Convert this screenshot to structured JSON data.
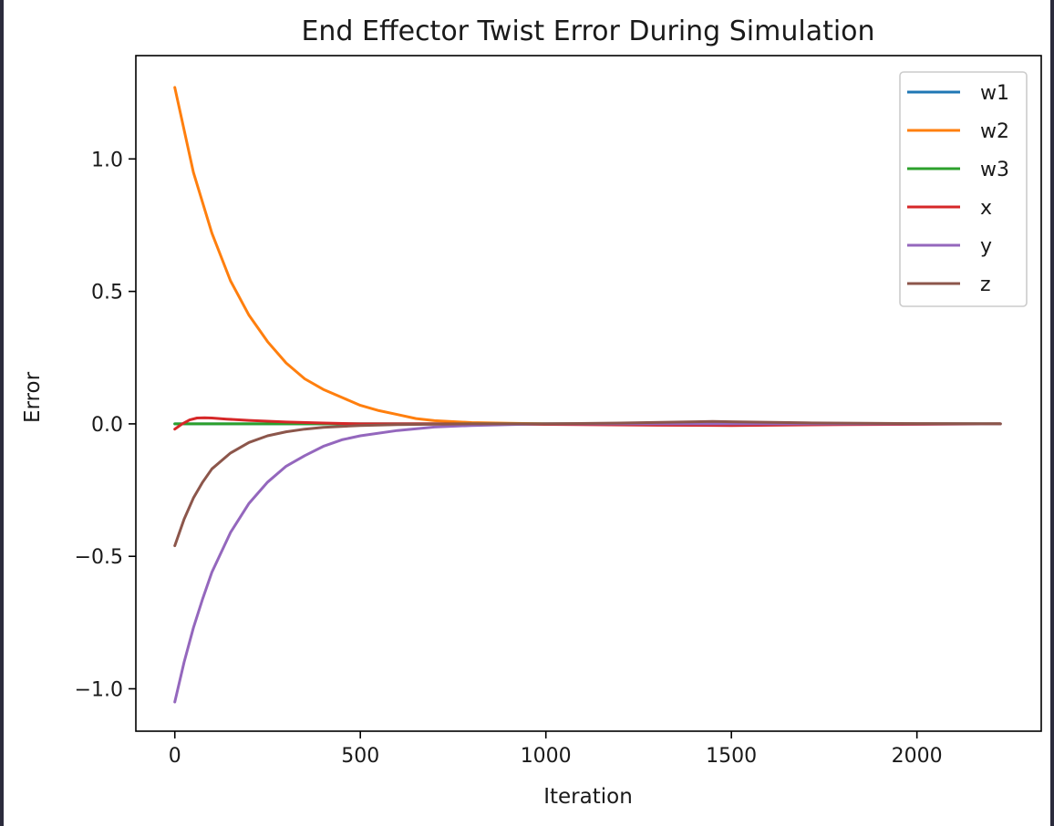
{
  "chart_data": {
    "type": "line",
    "title": "End Effector Twist Error During Simulation",
    "xlabel": "Iteration",
    "ylabel": "Error",
    "xlim": [
      -105,
      2335
    ],
    "ylim": [
      -1.16,
      1.39
    ],
    "xticks": [
      0,
      500,
      1000,
      1500,
      2000
    ],
    "xtick_labels": [
      "0",
      "500",
      "1000",
      "1500",
      "2000"
    ],
    "yticks": [
      -1.0,
      -0.5,
      0.0,
      0.5,
      1.0
    ],
    "ytick_labels": [
      "−1.0",
      "−0.5",
      "0.0",
      "0.5",
      "1.0"
    ],
    "grid": false,
    "legend_position": "top-right",
    "series": [
      {
        "name": "w1",
        "color": "#1f77b4",
        "x": [
          0,
          100,
          200,
          400,
          800,
          1200,
          1600,
          2000,
          2225
        ],
        "y": [
          0.0,
          0.0,
          0.0,
          0.0,
          0.0,
          0.0,
          0.0,
          0.0,
          0.0
        ]
      },
      {
        "name": "w2",
        "color": "#ff7f0e",
        "x": [
          0,
          50,
          100,
          150,
          200,
          250,
          300,
          350,
          400,
          450,
          500,
          550,
          600,
          650,
          700,
          800,
          900,
          1000,
          1200,
          1500,
          2000,
          2225
        ],
        "y": [
          1.27,
          0.95,
          0.72,
          0.54,
          0.41,
          0.31,
          0.23,
          0.17,
          0.13,
          0.1,
          0.07,
          0.05,
          0.035,
          0.02,
          0.012,
          0.005,
          0.002,
          0.0,
          0.0,
          0.0,
          0.0,
          0.0
        ]
      },
      {
        "name": "w3",
        "color": "#2ca02c",
        "x": [
          0,
          100,
          200,
          400,
          800,
          1200,
          1600,
          2000,
          2225
        ],
        "y": [
          0.0,
          0.0,
          0.0,
          0.0,
          0.0,
          0.0,
          0.0,
          0.0,
          0.0
        ]
      },
      {
        "name": "x",
        "color": "#d62728",
        "x": [
          0,
          20,
          40,
          60,
          80,
          100,
          140,
          200,
          300,
          400,
          500,
          700,
          1000,
          1300,
          1500,
          1800,
          2225
        ],
        "y": [
          -0.02,
          0.0,
          0.015,
          0.022,
          0.023,
          0.022,
          0.018,
          0.013,
          0.007,
          0.003,
          0.0,
          0.0,
          -0.002,
          -0.005,
          -0.006,
          -0.003,
          0.0
        ]
      },
      {
        "name": "y",
        "color": "#9467bd",
        "x": [
          0,
          25,
          50,
          75,
          100,
          150,
          200,
          250,
          300,
          350,
          400,
          450,
          500,
          600,
          700,
          800,
          900,
          1000,
          1200,
          1500,
          2000,
          2225
        ],
        "y": [
          -1.05,
          -0.9,
          -0.77,
          -0.66,
          -0.56,
          -0.41,
          -0.3,
          -0.22,
          -0.16,
          -0.12,
          -0.085,
          -0.06,
          -0.045,
          -0.025,
          -0.012,
          -0.006,
          -0.003,
          0.0,
          0.0,
          0.0,
          0.0,
          0.0
        ]
      },
      {
        "name": "z",
        "color": "#8c564b",
        "x": [
          0,
          25,
          50,
          75,
          100,
          150,
          200,
          250,
          300,
          350,
          400,
          500,
          600,
          800,
          1000,
          1200,
          1400,
          1450,
          1500,
          1700,
          2000,
          2225
        ],
        "y": [
          -0.46,
          -0.36,
          -0.28,
          -0.22,
          -0.17,
          -0.11,
          -0.07,
          -0.045,
          -0.03,
          -0.02,
          -0.013,
          -0.006,
          -0.003,
          0.0,
          0.0,
          0.003,
          0.008,
          0.009,
          0.008,
          0.004,
          0.001,
          0.0
        ]
      }
    ]
  }
}
